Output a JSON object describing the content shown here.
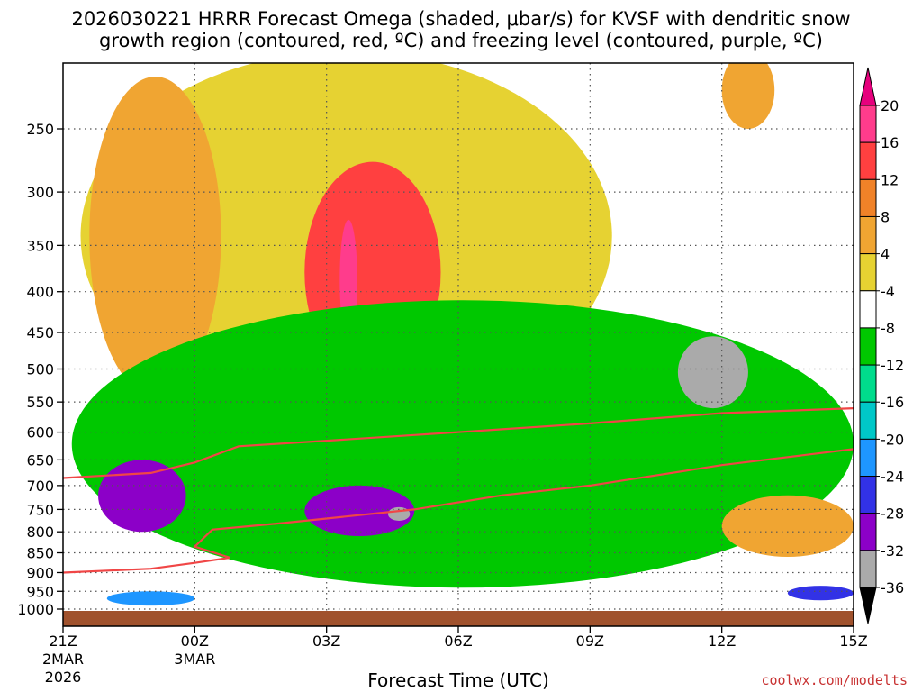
{
  "chart_data": {
    "type": "contour",
    "title_line1": "2026030221 HRRR Forecast Omega (shaded, μbar/s) for KVSF with dendritic snow",
    "title_line2": "growth region (contoured, red, ºC) and freezing level (contoured, purple, ºC)",
    "xlabel": "Forecast Time (UTC)",
    "ylabel": "",
    "credit": "coolwx.com/modelts",
    "x_ticks": [
      {
        "hour": 0,
        "label": "21Z",
        "sub1": "2MAR",
        "sub2": "2026"
      },
      {
        "hour": 3,
        "label": "00Z",
        "sub1": "3MAR",
        "sub2": ""
      },
      {
        "hour": 6,
        "label": "03Z",
        "sub1": "",
        "sub2": ""
      },
      {
        "hour": 9,
        "label": "06Z",
        "sub1": "",
        "sub2": ""
      },
      {
        "hour": 12,
        "label": "09Z",
        "sub1": "",
        "sub2": ""
      },
      {
        "hour": 15,
        "label": "12Z",
        "sub1": "",
        "sub2": ""
      },
      {
        "hour": 18,
        "label": "15Z",
        "sub1": "",
        "sub2": ""
      }
    ],
    "xlim_hours": [
      0,
      18
    ],
    "y_ticks_hpa": [
      250,
      300,
      350,
      400,
      450,
      500,
      550,
      600,
      650,
      700,
      750,
      800,
      850,
      900,
      950,
      1000
    ],
    "ylim_hpa": [
      200,
      1020
    ],
    "colorbar": {
      "labels": [
        "20",
        "16",
        "12",
        "8",
        "4",
        "-4",
        "-8",
        "-12",
        "-16",
        "-20",
        "-24",
        "-28",
        "-32",
        "-36"
      ],
      "colors": [
        "#ff3c8c",
        "#ff4040",
        "#f08228",
        "#f0a532",
        "#e6d232",
        "#ffffff",
        "#00c800",
        "#00dc8c",
        "#00c8c8",
        "#1e96ff",
        "#3232e6",
        "#8c00c8",
        "#aaaaaa",
        "#000000"
      ],
      "top_arrow_color": "#e6007d",
      "bottom_arrow_color": "#000000"
    },
    "omega_regions_ubar_s": [
      {
        "name": "upper-positive-yellow",
        "level": 4,
        "color": "#e6d232",
        "hours": [
          0.4,
          12.5
        ],
        "hpa": [
          200,
          580
        ]
      },
      {
        "name": "upper-positive-orange-west",
        "level": 8,
        "color": "#f0a532",
        "hours": [
          0.6,
          3.6
        ],
        "hpa": [
          215,
          540
        ]
      },
      {
        "name": "upper-positive-red-core",
        "level": 16,
        "color": "#ff4040",
        "hours": [
          5.5,
          8.6
        ],
        "hpa": [
          275,
          520
        ]
      },
      {
        "name": "upper-positive-magenta-core",
        "level": 20,
        "color": "#ff3c8c",
        "hours": [
          6.3,
          6.7
        ],
        "hpa": [
          325,
          460
        ]
      },
      {
        "name": "upper-right-orange",
        "level": 8,
        "color": "#f0a532",
        "hours": [
          15.0,
          16.2
        ],
        "hpa": [
          200,
          250
        ]
      },
      {
        "name": "lower-negative-green",
        "level": -4,
        "color": "#00c800",
        "hours": [
          0.2,
          18.0
        ],
        "hpa": [
          410,
          940
        ]
      },
      {
        "name": "right-negative-core-grey",
        "level": -32,
        "color": "#aaaaaa",
        "hours": [
          14.0,
          15.6
        ],
        "hpa": [
          455,
          560
        ]
      },
      {
        "name": "left-negative-purple",
        "level": -28,
        "color": "#8c00c8",
        "hours": [
          0.8,
          2.8
        ],
        "hpa": [
          650,
          800
        ]
      },
      {
        "name": "mid-negative-purple",
        "level": -28,
        "color": "#8c00c8",
        "hours": [
          5.5,
          8.0
        ],
        "hpa": [
          700,
          810
        ]
      },
      {
        "name": "mid-negative-grey",
        "level": -32,
        "color": "#aaaaaa",
        "hours": [
          7.4,
          7.9
        ],
        "hpa": [
          745,
          775
        ]
      },
      {
        "name": "lower-right-positive",
        "level": 8,
        "color": "#f0a532",
        "hours": [
          15.0,
          18.0
        ],
        "hpa": [
          720,
          860
        ]
      },
      {
        "name": "near-surface-negative-blue",
        "level": -20,
        "color": "#1e96ff",
        "hours": [
          1.0,
          3.0
        ],
        "hpa": [
          950,
          990
        ]
      },
      {
        "name": "near-surface-right-blue",
        "level": -24,
        "color": "#3232e6",
        "hours": [
          16.5,
          18.0
        ],
        "hpa": [
          935,
          975
        ]
      }
    ],
    "dgz_top_line_hpa": [
      {
        "hour": 0,
        "hpa": 685
      },
      {
        "hour": 2,
        "hpa": 675
      },
      {
        "hour": 3,
        "hpa": 655
      },
      {
        "hour": 4,
        "hpa": 625
      },
      {
        "hour": 6,
        "hpa": 615
      },
      {
        "hour": 8,
        "hpa": 605
      },
      {
        "hour": 10,
        "hpa": 595
      },
      {
        "hour": 12,
        "hpa": 585
      },
      {
        "hour": 15,
        "hpa": 568
      },
      {
        "hour": 18,
        "hpa": 560
      }
    ],
    "dgz_bottom_line_hpa": [
      {
        "hour": 0,
        "hpa": 900
      },
      {
        "hour": 2,
        "hpa": 890
      },
      {
        "hour": 3,
        "hpa": 875
      },
      {
        "hour": 3.8,
        "hpa": 862
      },
      {
        "hour": 3.0,
        "hpa": 835
      },
      {
        "hour": 3.4,
        "hpa": 795
      },
      {
        "hour": 5,
        "hpa": 780
      },
      {
        "hour": 8,
        "hpa": 750
      },
      {
        "hour": 10,
        "hpa": 720
      },
      {
        "hour": 12,
        "hpa": 700
      },
      {
        "hour": 15,
        "hpa": 660
      },
      {
        "hour": 18,
        "hpa": 630
      }
    ],
    "ground_color": "#a0522d",
    "grid": true
  }
}
